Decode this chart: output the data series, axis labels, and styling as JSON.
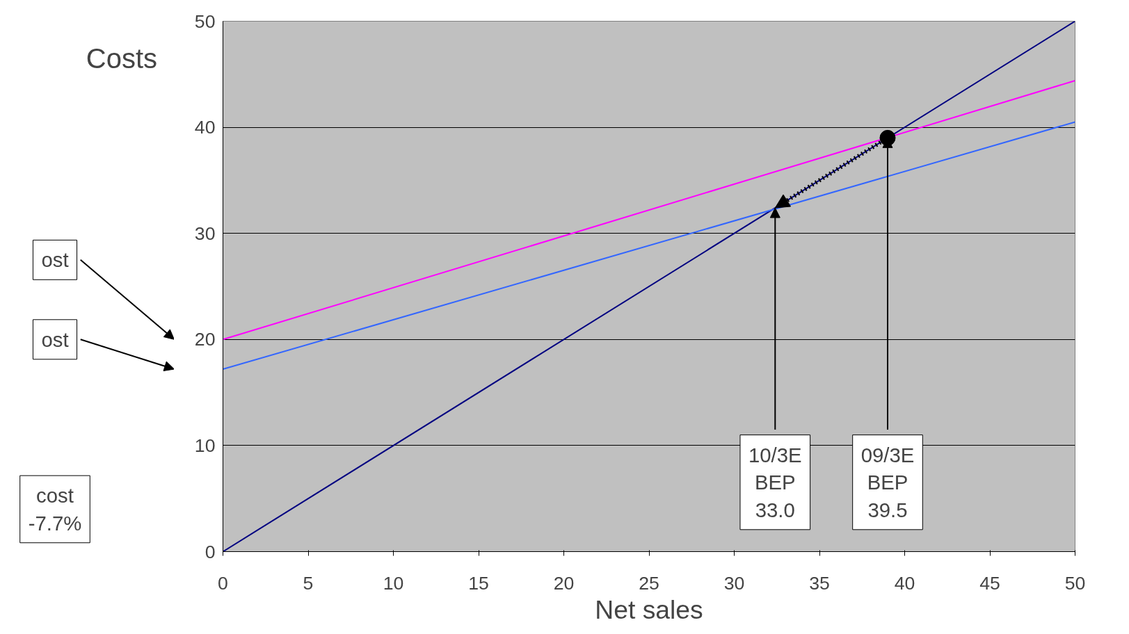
{
  "chart_data": {
    "type": "line",
    "xlabel": "Net sales",
    "ylabel": "Costs",
    "x": [
      0,
      50
    ],
    "series": [
      {
        "color": "#000080",
        "values": [
          0,
          50
        ]
      },
      {
        "color": "#ff00ff",
        "values": [
          20,
          44.4
        ]
      },
      {
        "color": "#3366ff",
        "values": [
          17.2,
          40.5
        ]
      },
      {
        "type": "scatter",
        "marker": "circle",
        "color": "#000000",
        "x": [
          39
        ],
        "values": [
          39
        ]
      }
    ],
    "xlim": [
      0,
      50
    ],
    "ylim": [
      0,
      50
    ],
    "xticks": [
      0,
      5,
      10,
      15,
      20,
      25,
      30,
      35,
      40,
      45,
      50
    ],
    "yticks": [
      0,
      10,
      20,
      30,
      40,
      50
    ],
    "grid": "y",
    "marker": "none",
    "line_style": "solid",
    "annotations": [
      "ost",
      "ost",
      "cost\n-7.7%",
      {
        "text": "10/3E\nBEP\n33.0",
        "x": 32.4,
        "y": 32.4
      },
      {
        "text": "09/3E\nBEP\n39.5",
        "x": 39,
        "y": 39
      }
    ]
  }
}
